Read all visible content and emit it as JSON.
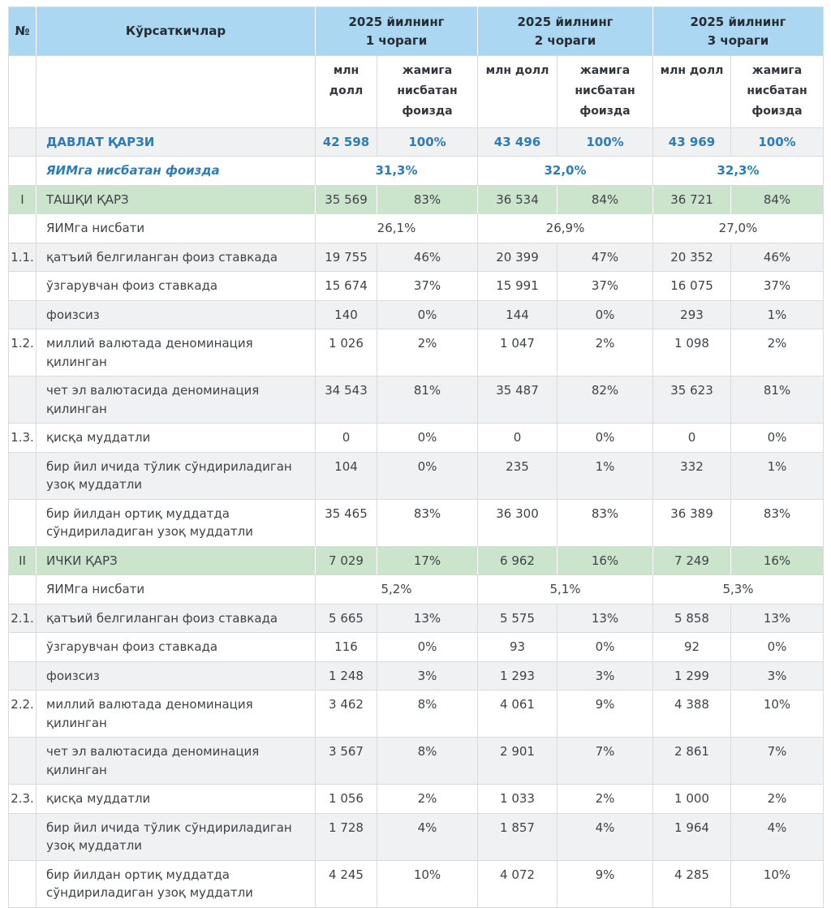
{
  "colors": {
    "header_bg": "#ABD7F3",
    "section_bg": "#CBE5CC",
    "shade_bg": "#F0F1F2",
    "accent_blue": "#2B7CB9",
    "text": "#3F4348",
    "border": "#DBDBDB"
  },
  "table": {
    "header": {
      "num": "№",
      "indicators": "Кўрсаткичлар",
      "quarters": [
        "2025 йилнинг\n1 чораги",
        "2025 йилнинг\n2 чораги",
        "2025 йилнинг\n3 чораги"
      ],
      "sub": [
        {
          "mln": "млн\nдолл",
          "share": "жамига\nнисбатан\nфоизда"
        },
        {
          "mln": "млн долл",
          "share": "жамига\nнисбатан\nфоизда"
        },
        {
          "mln": "млн долл",
          "share": "жамига\nнисбатан\nфоизда"
        }
      ]
    },
    "rows": [
      {
        "type": "total",
        "num": "",
        "label": "ДАВЛАТ ҚАРЗИ",
        "shade": true,
        "values": [
          "42 598",
          "100%",
          "43 496",
          "100%",
          "43 969",
          "100%"
        ]
      },
      {
        "type": "gdp-blue",
        "num": "",
        "label": "ЯИМга нисбатан фоизда",
        "shade": false,
        "merged": [
          "31,3%",
          "32,0%",
          "32,3%"
        ]
      },
      {
        "type": "section",
        "num": "I",
        "label": "ТАШҚИ ҚАРЗ",
        "shade": false,
        "values": [
          "35 569",
          "83%",
          "36 534",
          "84%",
          "36 721",
          "84%"
        ]
      },
      {
        "type": "gdp",
        "num": "",
        "label": "ЯИМга нисбати",
        "shade": false,
        "merged": [
          "26,1%",
          "26,9%",
          "27,0%"
        ]
      },
      {
        "type": "data",
        "num": "1.1.",
        "label": "қатъий белгиланган фоиз ставкада",
        "shade": true,
        "values": [
          "19 755",
          "46%",
          "20 399",
          "47%",
          "20 352",
          "46%"
        ]
      },
      {
        "type": "data",
        "num": "",
        "label": "ўзгарувчан фоиз ставкада",
        "shade": false,
        "values": [
          "15 674",
          "37%",
          "15 991",
          "37%",
          "16 075",
          "37%"
        ]
      },
      {
        "type": "data",
        "num": "",
        "label": "фоизсиз",
        "shade": true,
        "values": [
          "140",
          "0%",
          "144",
          "0%",
          "293",
          "1%"
        ]
      },
      {
        "type": "data",
        "num": "1.2.",
        "label": "миллий валютада деноминация қилинган",
        "shade": false,
        "values": [
          "1 026",
          "2%",
          "1 047",
          "2%",
          "1 098",
          "2%"
        ]
      },
      {
        "type": "data",
        "num": "",
        "label": "чет эл валютасида деноминация қилинган",
        "shade": true,
        "values": [
          "34 543",
          "81%",
          "35 487",
          "82%",
          "35 623",
          "81%"
        ]
      },
      {
        "type": "data",
        "num": "1.3.",
        "label": "қисқа муддатли",
        "shade": false,
        "values": [
          "0",
          "0%",
          "0",
          "0%",
          "0",
          "0%"
        ]
      },
      {
        "type": "data",
        "num": "",
        "label": "бир йил ичида тўлик сўндириладиган узоқ муддатли",
        "shade": true,
        "values": [
          "104",
          "0%",
          "235",
          "1%",
          "332",
          "1%"
        ]
      },
      {
        "type": "data",
        "num": "",
        "label": "бир йилдан ортиқ муддатда сўндириладиган узоқ муддатли",
        "shade": false,
        "values": [
          "35 465",
          "83%",
          "36 300",
          "83%",
          "36 389",
          "83%"
        ]
      },
      {
        "type": "section",
        "num": "II",
        "label": "ИЧКИ ҚАРЗ",
        "shade": false,
        "values": [
          "7 029",
          "17%",
          "6 962",
          "16%",
          "7 249",
          "16%"
        ]
      },
      {
        "type": "gdp",
        "num": "",
        "label": "ЯИМга нисбати",
        "shade": false,
        "merged": [
          "5,2%",
          "5,1%",
          "5,3%"
        ]
      },
      {
        "type": "data",
        "num": "2.1.",
        "label": "қатъий белгиланган фоиз ставкада",
        "shade": true,
        "values": [
          "5 665",
          "13%",
          "5 575",
          "13%",
          "5 858",
          "13%"
        ]
      },
      {
        "type": "data",
        "num": "",
        "label": "ўзгарувчан фоиз ставкада",
        "shade": false,
        "values": [
          "116",
          "0%",
          "93",
          "0%",
          "92",
          "0%"
        ]
      },
      {
        "type": "data",
        "num": "",
        "label": "фоизсиз",
        "shade": true,
        "values": [
          "1 248",
          "3%",
          "1 293",
          "3%",
          "1 299",
          "3%"
        ]
      },
      {
        "type": "data",
        "num": "2.2.",
        "label": "миллий валютада деноминация қилинган",
        "shade": false,
        "values": [
          "3 462",
          "8%",
          "4 061",
          "9%",
          "4 388",
          "10%"
        ]
      },
      {
        "type": "data",
        "num": "",
        "label": "чет эл валютасида деноминация қилинган",
        "shade": true,
        "values": [
          "3 567",
          "8%",
          "2 901",
          "7%",
          "2 861",
          "7%"
        ]
      },
      {
        "type": "data",
        "num": "2.3.",
        "label": "қисқа муддатли",
        "shade": false,
        "values": [
          "1 056",
          "2%",
          "1 033",
          "2%",
          "1 000",
          "2%"
        ]
      },
      {
        "type": "data",
        "num": "",
        "label": "бир йил ичида тўлик сўндириладиган узоқ муддатли",
        "shade": true,
        "values": [
          "1 728",
          "4%",
          "1 857",
          "4%",
          "1 964",
          "4%"
        ]
      },
      {
        "type": "data",
        "num": "",
        "label": "бир йилдан ортиқ муддатда сўндириладиган узоқ муддатли",
        "shade": false,
        "values": [
          "4 245",
          "10%",
          "4 072",
          "9%",
          "4 285",
          "10%"
        ]
      }
    ]
  },
  "chart_data": {
    "type": "table",
    "columns": [
      "№",
      "Кўрсаткичлар",
      "Q1 2025 млн долл",
      "Q1 2025 жамига нисбатан фоизда",
      "Q2 2025 млн долл",
      "Q2 2025 жамига нисбатан фоизда",
      "Q3 2025 млн долл",
      "Q3 2025 жамига нисбатан фоизда"
    ],
    "rows": [
      [
        "",
        "ДАВЛАТ ҚАРЗИ",
        "42 598",
        "100%",
        "43 496",
        "100%",
        "43 969",
        "100%"
      ],
      [
        "",
        "ЯИМга нисбатан фоизда",
        "31,3%",
        "",
        "32,0%",
        "",
        "32,3%",
        ""
      ],
      [
        "I",
        "ТАШҚИ ҚАРЗ",
        "35 569",
        "83%",
        "36 534",
        "84%",
        "36 721",
        "84%"
      ],
      [
        "",
        "ЯИМга нисбати",
        "26,1%",
        "",
        "26,9%",
        "",
        "27,0%",
        ""
      ],
      [
        "1.1.",
        "қатъий белгиланган фоиз ставкада",
        "19 755",
        "46%",
        "20 399",
        "47%",
        "20 352",
        "46%"
      ],
      [
        "",
        "ўзгарувчан фоиз ставкада",
        "15 674",
        "37%",
        "15 991",
        "37%",
        "16 075",
        "37%"
      ],
      [
        "",
        "фоизсиз",
        "140",
        "0%",
        "144",
        "0%",
        "293",
        "1%"
      ],
      [
        "1.2.",
        "миллий валютада деноминация қилинган",
        "1 026",
        "2%",
        "1 047",
        "2%",
        "1 098",
        "2%"
      ],
      [
        "",
        "чет эл валютасида деноминация қилинган",
        "34 543",
        "81%",
        "35 487",
        "82%",
        "35 623",
        "81%"
      ],
      [
        "1.3.",
        "қисқа муддатли",
        "0",
        "0%",
        "0",
        "0%",
        "0",
        "0%"
      ],
      [
        "",
        "бир йил ичида тўлик сўндириладиган узоқ муддатли",
        "104",
        "0%",
        "235",
        "1%",
        "332",
        "1%"
      ],
      [
        "",
        "бир йилдан ортиқ муддатда сўндириладиган узоқ муддатли",
        "35 465",
        "83%",
        "36 300",
        "83%",
        "36 389",
        "83%"
      ],
      [
        "II",
        "ИЧКИ ҚАРЗ",
        "7 029",
        "17%",
        "6 962",
        "16%",
        "7 249",
        "16%"
      ],
      [
        "",
        "ЯИМга нисбати",
        "5,2%",
        "",
        "5,1%",
        "",
        "5,3%",
        ""
      ],
      [
        "2.1.",
        "қатъий белгиланган фоиз ставкада",
        "5 665",
        "13%",
        "5 575",
        "13%",
        "5 858",
        "13%"
      ],
      [
        "",
        "ўзгарувчан фоиз ставкада",
        "116",
        "0%",
        "93",
        "0%",
        "92",
        "0%"
      ],
      [
        "",
        "фоизсиз",
        "1 248",
        "3%",
        "1 293",
        "3%",
        "1 299",
        "3%"
      ],
      [
        "2.2.",
        "миллий валютада деноминация қилинган",
        "3 462",
        "8%",
        "4 061",
        "9%",
        "4 388",
        "10%"
      ],
      [
        "",
        "чет эл валютасида деноминация қилинган",
        "3 567",
        "8%",
        "2 901",
        "7%",
        "2 861",
        "7%"
      ],
      [
        "2.3.",
        "қисқа муддатли",
        "1 056",
        "2%",
        "1 033",
        "2%",
        "1 000",
        "2%"
      ],
      [
        "",
        "бир йил ичида тўлик сўндириладиган узоқ муддатли",
        "1 728",
        "4%",
        "1 857",
        "4%",
        "1 964",
        "4%"
      ],
      [
        "",
        "бир йилдан ортиқ муддатда сўндириладиган узоқ муддатли",
        "4 245",
        "10%",
        "4 072",
        "9%",
        "4 285",
        "10%"
      ]
    ]
  }
}
